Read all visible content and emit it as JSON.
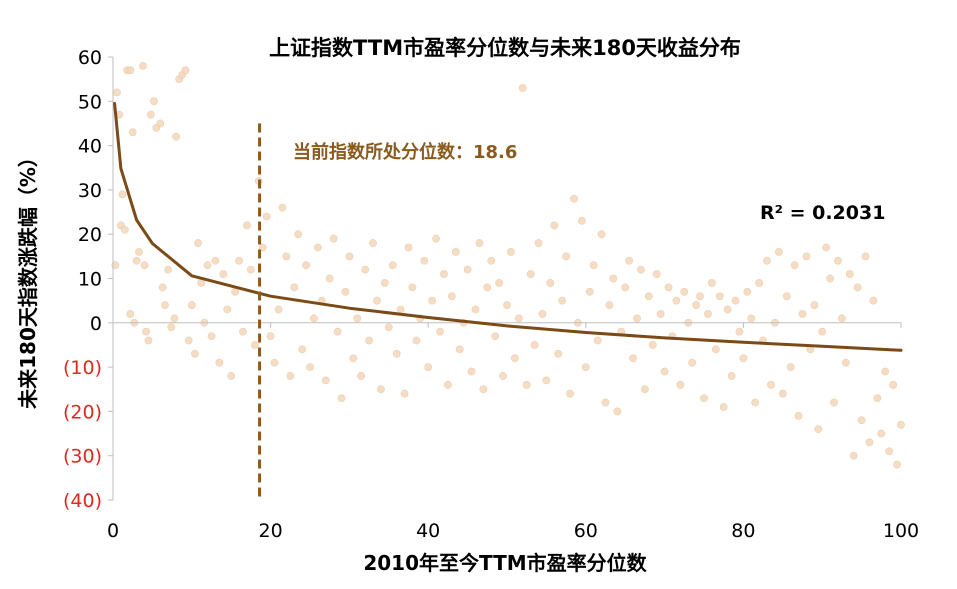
{
  "chart_data": {
    "type": "scatter",
    "title": "上证指数TTM市盈率分位数与未来180天收益分布",
    "xlabel": "2010年至今TTM市盈率分位数",
    "ylabel": "未来180天指数涨跌幅（%）",
    "xlim": [
      0,
      100
    ],
    "ylim": [
      -40,
      60
    ],
    "xticks": [
      0,
      20,
      40,
      60,
      80,
      100
    ],
    "yticks": [
      60,
      50,
      40,
      30,
      20,
      10,
      0,
      -10,
      -20,
      -30,
      -40
    ],
    "ytick_labels": [
      "60",
      "50",
      "40",
      "30",
      "20",
      "10",
      "0",
      "(10)",
      "(20)",
      "(30)",
      "(40)"
    ],
    "grid": false,
    "colors": {
      "points": "#f3d9bf",
      "trendline": "#7b4a16",
      "marker_line": "#8a5a1e",
      "annotation": "#8a5a1e",
      "negative_tick": "#e0281e"
    },
    "trendline": {
      "type": "logarithmic",
      "points": [
        [
          0.2,
          49.5
        ],
        [
          1,
          34.8
        ],
        [
          3,
          23.2
        ],
        [
          5,
          17.9
        ],
        [
          10,
          10.6
        ],
        [
          20,
          6.0
        ],
        [
          30,
          3.3
        ],
        [
          40,
          1.2
        ],
        [
          50,
          -0.7
        ],
        [
          60,
          -2.2
        ],
        [
          70,
          -3.4
        ],
        [
          80,
          -4.4
        ],
        [
          90,
          -5.3
        ],
        [
          100,
          -6.2
        ]
      ]
    },
    "r_squared_label": "R² = 0.2031",
    "current_marker": {
      "x": 18.6,
      "label": "当前指数所处分位数：18.6"
    },
    "series": [
      {
        "points": [
          [
            0.3,
            13
          ],
          [
            0.5,
            52
          ],
          [
            0.8,
            47
          ],
          [
            1,
            22
          ],
          [
            1.2,
            29
          ],
          [
            1.5,
            21
          ],
          [
            1.8,
            57
          ],
          [
            2.2,
            57
          ],
          [
            2.5,
            43
          ],
          [
            2.2,
            2
          ],
          [
            2.7,
            0
          ],
          [
            3,
            14
          ],
          [
            3.3,
            16
          ],
          [
            3.8,
            58
          ],
          [
            4,
            13
          ],
          [
            4.2,
            -2
          ],
          [
            4.5,
            -4
          ],
          [
            4.8,
            47
          ],
          [
            5.2,
            50
          ],
          [
            5.5,
            44
          ],
          [
            6,
            45
          ],
          [
            6.3,
            8
          ],
          [
            6.6,
            4
          ],
          [
            7,
            12
          ],
          [
            7.4,
            -1
          ],
          [
            7.8,
            1
          ],
          [
            8,
            42
          ],
          [
            8.4,
            55
          ],
          [
            8.8,
            56
          ],
          [
            9.2,
            57
          ],
          [
            9.6,
            -4
          ],
          [
            10,
            4
          ],
          [
            10.4,
            -7
          ],
          [
            10.8,
            18
          ],
          [
            11.2,
            9
          ],
          [
            11.6,
            0
          ],
          [
            12,
            13
          ],
          [
            12.5,
            -3
          ],
          [
            13,
            14
          ],
          [
            13.5,
            -9
          ],
          [
            14,
            11
          ],
          [
            14.5,
            3
          ],
          [
            15,
            -12
          ],
          [
            15.5,
            7
          ],
          [
            16,
            14
          ],
          [
            16.5,
            -2
          ],
          [
            17,
            22
          ],
          [
            17.5,
            12
          ],
          [
            18,
            -5
          ],
          [
            18.5,
            32
          ],
          [
            19,
            17
          ],
          [
            19.5,
            24
          ],
          [
            20,
            -3
          ],
          [
            20.5,
            -9
          ],
          [
            21,
            3
          ],
          [
            21.5,
            26
          ],
          [
            22,
            15
          ],
          [
            22.5,
            -12
          ],
          [
            23,
            8
          ],
          [
            23.5,
            20
          ],
          [
            24,
            -6
          ],
          [
            24.5,
            13
          ],
          [
            25,
            -10
          ],
          [
            25.5,
            1
          ],
          [
            26,
            17
          ],
          [
            26.5,
            5
          ],
          [
            27,
            -13
          ],
          [
            27.5,
            10
          ],
          [
            28,
            19
          ],
          [
            28.5,
            -2
          ],
          [
            29,
            -17
          ],
          [
            29.5,
            7
          ],
          [
            30,
            15
          ],
          [
            30.5,
            -8
          ],
          [
            31,
            1
          ],
          [
            31.5,
            -12
          ],
          [
            32,
            12
          ],
          [
            32.5,
            -4
          ],
          [
            33,
            18
          ],
          [
            33.5,
            5
          ],
          [
            34,
            -15
          ],
          [
            34.5,
            9
          ],
          [
            35,
            -1
          ],
          [
            35.5,
            13
          ],
          [
            36,
            -7
          ],
          [
            36.5,
            3
          ],
          [
            37,
            -16
          ],
          [
            37.5,
            17
          ],
          [
            38,
            8
          ],
          [
            38.5,
            -4
          ],
          [
            39,
            1
          ],
          [
            39.5,
            14
          ],
          [
            40,
            -10
          ],
          [
            40.5,
            5
          ],
          [
            41,
            19
          ],
          [
            41.5,
            -2
          ],
          [
            42,
            11
          ],
          [
            42.5,
            -14
          ],
          [
            43,
            6
          ],
          [
            43.5,
            16
          ],
          [
            44,
            -6
          ],
          [
            44.5,
            0
          ],
          [
            45,
            12
          ],
          [
            45.5,
            -11
          ],
          [
            46,
            3
          ],
          [
            46.5,
            18
          ],
          [
            47,
            -15
          ],
          [
            47.5,
            8
          ],
          [
            48,
            14
          ],
          [
            48.5,
            -3
          ],
          [
            49,
            9
          ],
          [
            49.5,
            -12
          ],
          [
            50,
            4
          ],
          [
            50.5,
            16
          ],
          [
            51,
            -8
          ],
          [
            51.5,
            1
          ],
          [
            52,
            53
          ],
          [
            52.5,
            -14
          ],
          [
            53,
            11
          ],
          [
            53.5,
            -5
          ],
          [
            54,
            18
          ],
          [
            54.5,
            2
          ],
          [
            55,
            -13
          ],
          [
            55.5,
            9
          ],
          [
            56,
            22
          ],
          [
            56.5,
            -7
          ],
          [
            57,
            5
          ],
          [
            57.5,
            15
          ],
          [
            58,
            -16
          ],
          [
            58.5,
            28
          ],
          [
            59,
            0
          ],
          [
            59.5,
            23
          ],
          [
            60,
            -10
          ],
          [
            60.5,
            7
          ],
          [
            61,
            13
          ],
          [
            61.5,
            -4
          ],
          [
            62,
            20
          ],
          [
            62.5,
            -18
          ],
          [
            63,
            4
          ],
          [
            63.5,
            10
          ],
          [
            64,
            -20
          ],
          [
            64.5,
            -2
          ],
          [
            65,
            8
          ],
          [
            65.5,
            14
          ],
          [
            66,
            -8
          ],
          [
            66.5,
            1
          ],
          [
            67,
            12
          ],
          [
            67.5,
            -15
          ],
          [
            68,
            6
          ],
          [
            68.5,
            -5
          ],
          [
            69,
            11
          ],
          [
            69.5,
            2
          ],
          [
            70,
            -11
          ],
          [
            70.5,
            8
          ],
          [
            71,
            -3
          ],
          [
            71.5,
            5
          ],
          [
            72,
            -14
          ],
          [
            72.5,
            7
          ],
          [
            73,
            0
          ],
          [
            73.5,
            -9
          ],
          [
            74,
            4
          ],
          [
            74.5,
            6
          ],
          [
            75,
            -17
          ],
          [
            75.5,
            2
          ],
          [
            76,
            9
          ],
          [
            76.5,
            -6
          ],
          [
            77,
            6
          ],
          [
            77.5,
            -19
          ],
          [
            78,
            3
          ],
          [
            78.5,
            -12
          ],
          [
            79,
            5
          ],
          [
            79.5,
            -2
          ],
          [
            80,
            -8
          ],
          [
            80.5,
            7
          ],
          [
            81,
            1
          ],
          [
            81.5,
            -18
          ],
          [
            82,
            9
          ],
          [
            82.5,
            -4
          ],
          [
            83,
            14
          ],
          [
            83.5,
            -14
          ],
          [
            84,
            0
          ],
          [
            84.5,
            16
          ],
          [
            85,
            -16
          ],
          [
            85.5,
            6
          ],
          [
            86,
            -10
          ],
          [
            86.5,
            13
          ],
          [
            87,
            -21
          ],
          [
            87.5,
            2
          ],
          [
            88,
            15
          ],
          [
            88.5,
            -6
          ],
          [
            89,
            4
          ],
          [
            89.5,
            -24
          ],
          [
            90,
            -2
          ],
          [
            90.5,
            17
          ],
          [
            91,
            10
          ],
          [
            91.5,
            -18
          ],
          [
            92,
            14
          ],
          [
            92.5,
            1
          ],
          [
            93,
            -9
          ],
          [
            93.5,
            11
          ],
          [
            94,
            -30
          ],
          [
            94.5,
            8
          ],
          [
            95,
            -22
          ],
          [
            95.5,
            15
          ],
          [
            96,
            -27
          ],
          [
            96.5,
            5
          ],
          [
            97,
            -17
          ],
          [
            97.5,
            -25
          ],
          [
            98,
            -11
          ],
          [
            98.5,
            -29
          ],
          [
            99,
            -14
          ],
          [
            99.5,
            -32
          ],
          [
            100,
            -23
          ]
        ]
      }
    ]
  }
}
